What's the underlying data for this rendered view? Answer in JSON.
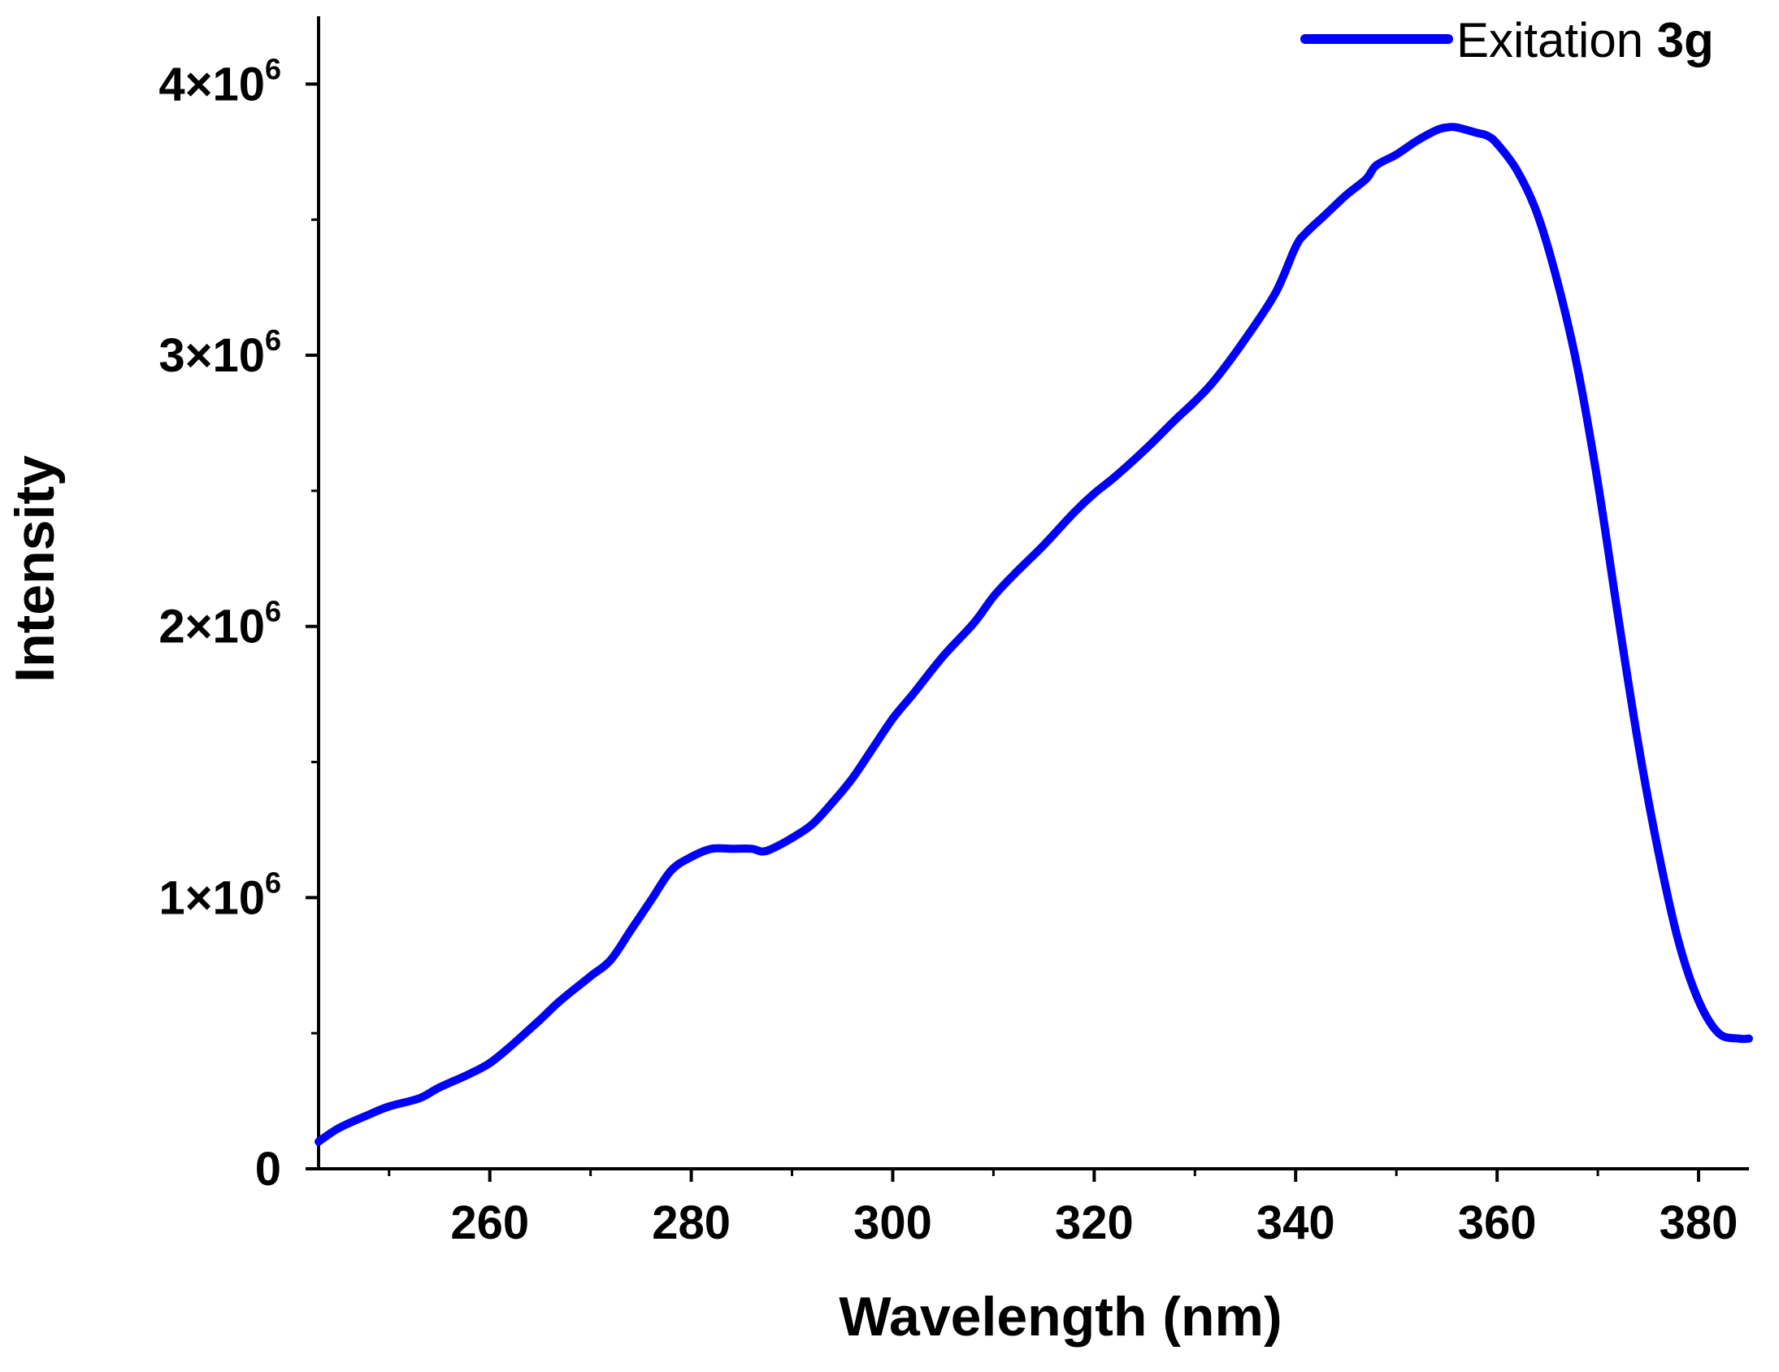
{
  "chart_data": {
    "type": "line",
    "title": "",
    "xlabel": "Wavelength (nm)",
    "ylabel": "Intensity",
    "xlim": [
      243,
      385
    ],
    "ylim": [
      0,
      4250000
    ],
    "x_ticks": [
      260,
      280,
      300,
      320,
      340,
      360,
      380
    ],
    "x_tick_labels": [
      "260",
      "280",
      "300",
      "320",
      "340",
      "360",
      "380"
    ],
    "y_ticks": [
      0,
      1000000,
      2000000,
      3000000,
      4000000
    ],
    "y_tick_labels": [
      {
        "base": "0",
        "exp": ""
      },
      {
        "base": "1×10",
        "exp": "6"
      },
      {
        "base": "2×10",
        "exp": "6"
      },
      {
        "base": "3×10",
        "exp": "6"
      },
      {
        "base": "4×10",
        "exp": "6"
      }
    ],
    "grid": false,
    "legend": {
      "position": "top-right",
      "entries": [
        {
          "name": "Exitation ",
          "name_bold": "3g",
          "color": "#0000ff"
        }
      ]
    },
    "series": [
      {
        "name": "Exitation 3g",
        "color": "#0000ff",
        "x": [
          243,
          245,
          248,
          250,
          253,
          255,
          258,
          260,
          262,
          265,
          267,
          270,
          272,
          274,
          276,
          278,
          280,
          282,
          284,
          286,
          287,
          288,
          290,
          292,
          294,
          296,
          298,
          300,
          302,
          305,
          308,
          310,
          312,
          315,
          318,
          320,
          322,
          325,
          328,
          330,
          332,
          335,
          338,
          340,
          341,
          343,
          345,
          347,
          348,
          350,
          352,
          354,
          355,
          356,
          358,
          359,
          360,
          362,
          364,
          366,
          368,
          370,
          372,
          374,
          376,
          378,
          380,
          382,
          384,
          385
        ],
        "values": [
          100000,
          150000,
          200000,
          230000,
          260000,
          300000,
          350000,
          390000,
          450000,
          550000,
          620000,
          710000,
          770000,
          880000,
          990000,
          1100000,
          1150000,
          1180000,
          1180000,
          1180000,
          1170000,
          1180000,
          1220000,
          1270000,
          1350000,
          1440000,
          1550000,
          1660000,
          1750000,
          1890000,
          2010000,
          2110000,
          2190000,
          2300000,
          2420000,
          2490000,
          2550000,
          2650000,
          2760000,
          2830000,
          2910000,
          3060000,
          3230000,
          3400000,
          3450000,
          3520000,
          3590000,
          3650000,
          3700000,
          3740000,
          3790000,
          3830000,
          3840000,
          3840000,
          3820000,
          3810000,
          3780000,
          3680000,
          3520000,
          3270000,
          2950000,
          2530000,
          2040000,
          1570000,
          1170000,
          840000,
          620000,
          500000,
          480000,
          480000
        ]
      }
    ]
  }
}
